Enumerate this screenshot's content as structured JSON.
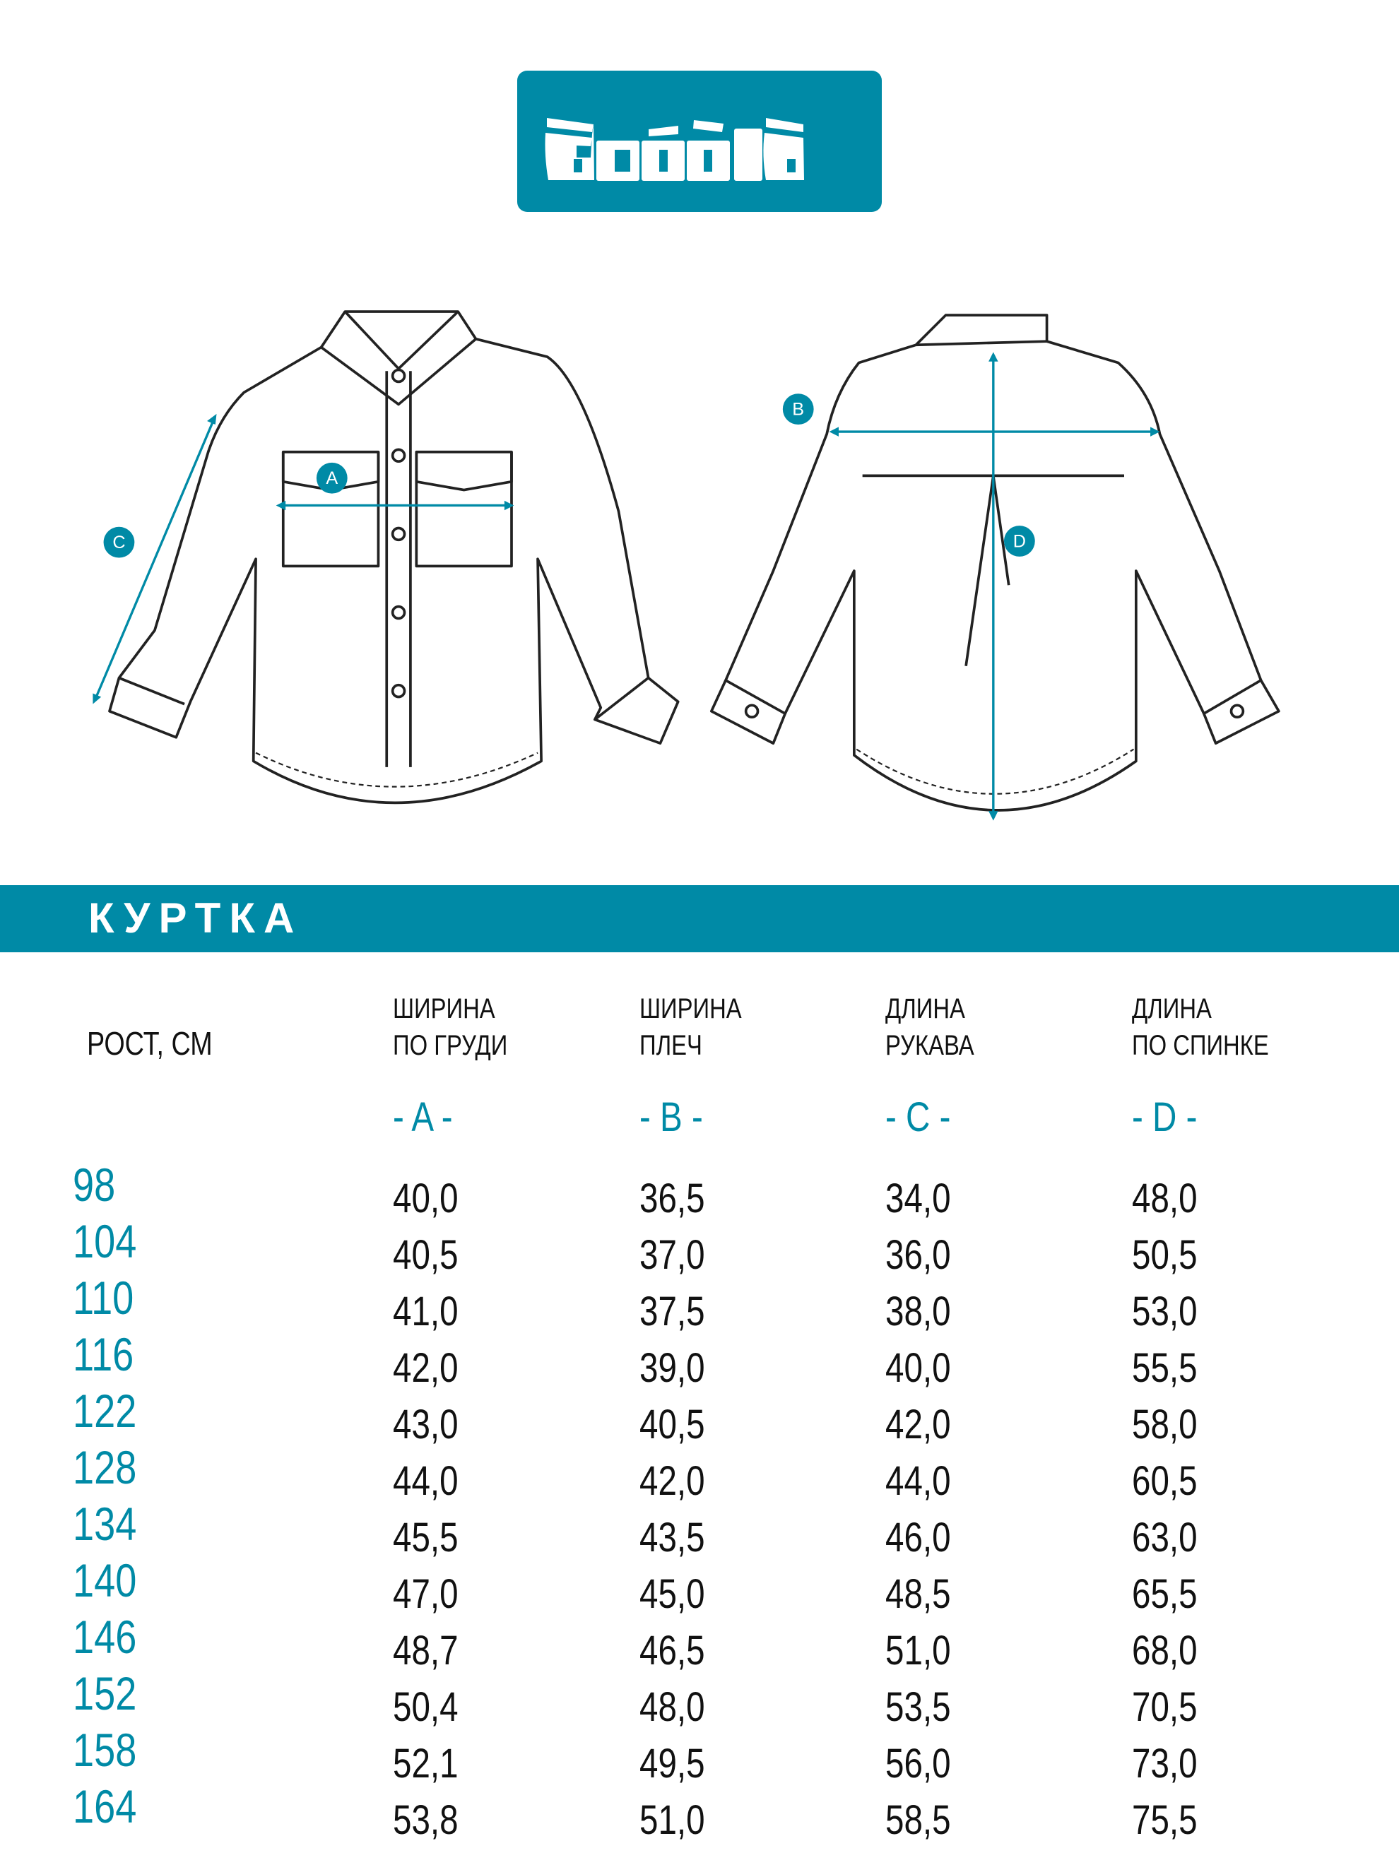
{
  "brand": {
    "logo_text": "acoola",
    "color": "#008aa6"
  },
  "diagram_labels": {
    "a": "A",
    "b": "B",
    "c": "C",
    "d": "D"
  },
  "section_title": "КУРТКА",
  "table": {
    "row_header": "РОСТ, СМ",
    "columns": [
      {
        "line1": "ШИРИНА",
        "line2": "ПО ГРУДИ",
        "letter": "- A -"
      },
      {
        "line1": "ШИРИНА",
        "line2": "ПЛЕЧ",
        "letter": "- B -"
      },
      {
        "line1": "ДЛИНА",
        "line2": "РУКАВА",
        "letter": "- C -"
      },
      {
        "line1": "ДЛИНА",
        "line2": "ПО СПИНКЕ",
        "letter": "- D -"
      }
    ],
    "rows": [
      {
        "height": "98",
        "values": [
          "40,0",
          "36,5",
          "34,0",
          "48,0"
        ]
      },
      {
        "height": "104",
        "values": [
          "40,5",
          "37,0",
          "36,0",
          "50,5"
        ]
      },
      {
        "height": "110",
        "values": [
          "41,0",
          "37,5",
          "38,0",
          "53,0"
        ]
      },
      {
        "height": "116",
        "values": [
          "42,0",
          "39,0",
          "40,0",
          "55,5"
        ]
      },
      {
        "height": "122",
        "values": [
          "43,0",
          "40,5",
          "42,0",
          "58,0"
        ]
      },
      {
        "height": "128",
        "values": [
          "44,0",
          "42,0",
          "44,0",
          "60,5"
        ]
      },
      {
        "height": "134",
        "values": [
          "45,5",
          "43,5",
          "46,0",
          "63,0"
        ]
      },
      {
        "height": "140",
        "values": [
          "47,0",
          "45,0",
          "48,5",
          "65,5"
        ]
      },
      {
        "height": "146",
        "values": [
          "48,7",
          "46,5",
          "51,0",
          "68,0"
        ]
      },
      {
        "height": "152",
        "values": [
          "50,4",
          "48,0",
          "53,5",
          "70,5"
        ]
      },
      {
        "height": "158",
        "values": [
          "52,1",
          "49,5",
          "56,0",
          "73,0"
        ]
      },
      {
        "height": "164",
        "values": [
          "53,8",
          "51,0",
          "58,5",
          "75,5"
        ]
      }
    ]
  }
}
